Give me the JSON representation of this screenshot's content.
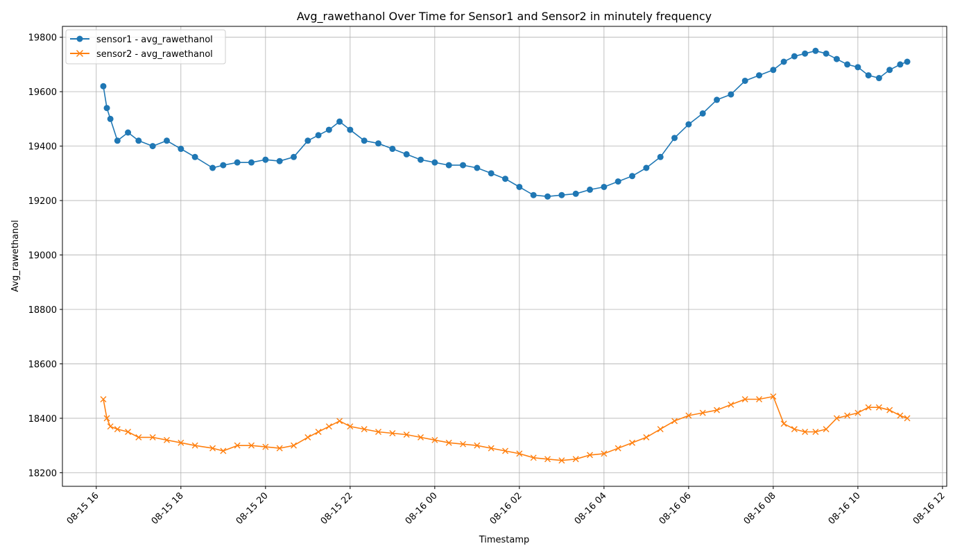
{
  "chart_data": {
    "type": "line",
    "title": "Avg_rawethanol Over Time for Sensor1 and Sensor2 in minutely frequency",
    "xlabel": "Timestamp",
    "ylabel": "Avg_rawethanol",
    "x_tick_labels": [
      "08-15 16",
      "08-15 18",
      "08-15 20",
      "08-15 22",
      "08-16 00",
      "08-16 02",
      "08-16 04",
      "08-16 06",
      "08-16 08",
      "08-16 10",
      "08-16 12"
    ],
    "xlim": [
      "08-15 15:12",
      "08-16 12:06"
    ],
    "ylim": [
      18150,
      19840
    ],
    "y_ticks": [
      18200,
      18400,
      18600,
      18800,
      19000,
      19200,
      19400,
      19600,
      19800
    ],
    "grid": true,
    "legend_position": "top-left",
    "x": [
      "08-15 16:10",
      "08-15 16:15",
      "08-15 16:20",
      "08-15 16:30",
      "08-15 16:45",
      "08-15 17:00",
      "08-15 17:20",
      "08-15 17:40",
      "08-15 18:00",
      "08-15 18:20",
      "08-15 18:45",
      "08-15 19:00",
      "08-15 19:20",
      "08-15 19:40",
      "08-15 20:00",
      "08-15 20:20",
      "08-15 20:40",
      "08-15 21:00",
      "08-15 21:15",
      "08-15 21:30",
      "08-15 21:45",
      "08-15 22:00",
      "08-15 22:20",
      "08-15 22:40",
      "08-15 23:00",
      "08-15 23:20",
      "08-15 23:40",
      "08-16 00:00",
      "08-16 00:20",
      "08-16 00:40",
      "08-16 01:00",
      "08-16 01:20",
      "08-16 01:40",
      "08-16 02:00",
      "08-16 02:20",
      "08-16 02:40",
      "08-16 03:00",
      "08-16 03:20",
      "08-16 03:40",
      "08-16 04:00",
      "08-16 04:20",
      "08-16 04:40",
      "08-16 05:00",
      "08-16 05:20",
      "08-16 05:40",
      "08-16 06:00",
      "08-16 06:20",
      "08-16 06:40",
      "08-16 07:00",
      "08-16 07:20",
      "08-16 07:40",
      "08-16 08:00",
      "08-16 08:15",
      "08-16 08:30",
      "08-16 08:45",
      "08-16 09:00",
      "08-16 09:15",
      "08-16 09:30",
      "08-16 09:45",
      "08-16 10:00",
      "08-16 10:15",
      "08-16 10:30",
      "08-16 10:45",
      "08-16 11:00",
      "08-16 11:10"
    ],
    "series": [
      {
        "name": "sensor1 - avg_rawethanol",
        "color": "#1f77b4",
        "marker": "circle",
        "values": [
          19620,
          19540,
          19500,
          19420,
          19450,
          19420,
          19400,
          19420,
          19390,
          19360,
          19320,
          19330,
          19340,
          19340,
          19350,
          19345,
          19360,
          19420,
          19440,
          19460,
          19490,
          19460,
          19420,
          19410,
          19390,
          19370,
          19350,
          19340,
          19330,
          19330,
          19320,
          19300,
          19280,
          19250,
          19220,
          19215,
          19220,
          19225,
          19240,
          19250,
          19270,
          19290,
          19320,
          19360,
          19430,
          19480,
          19520,
          19570,
          19590,
          19640,
          19660,
          19680,
          19710,
          19730,
          19740,
          19750,
          19740,
          19720,
          19700,
          19690,
          19660,
          19650,
          19680,
          19700,
          19710
        ]
      },
      {
        "name": "sensor2 - avg_rawethanol",
        "color": "#ff7f0e",
        "marker": "x",
        "values": [
          18470,
          18400,
          18370,
          18360,
          18350,
          18330,
          18330,
          18320,
          18310,
          18300,
          18290,
          18280,
          18300,
          18300,
          18295,
          18290,
          18300,
          18330,
          18350,
          18370,
          18390,
          18370,
          18360,
          18350,
          18345,
          18340,
          18330,
          18320,
          18310,
          18305,
          18300,
          18290,
          18280,
          18270,
          18255,
          18250,
          18245,
          18250,
          18265,
          18270,
          18290,
          18310,
          18330,
          18360,
          18390,
          18410,
          18420,
          18430,
          18450,
          18470,
          18470,
          18480,
          18380,
          18360,
          18350,
          18350,
          18360,
          18400,
          18410,
          18420,
          18440,
          18440,
          18430,
          18410,
          18400
        ]
      }
    ]
  }
}
